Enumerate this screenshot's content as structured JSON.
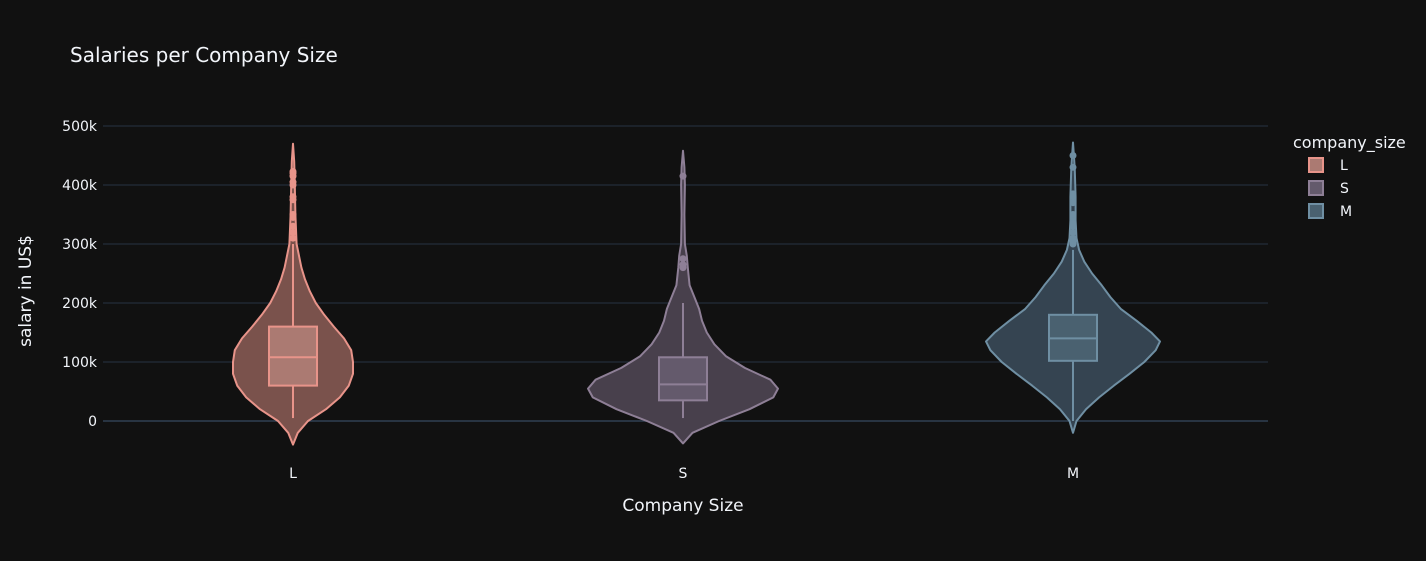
{
  "chart_data": {
    "type": "violin",
    "title": "Salaries per Company Size",
    "xlabel": "Company Size",
    "ylabel": "salary in US$",
    "ylim": [
      -50000,
      500000
    ],
    "yticks": [
      0,
      100000,
      200000,
      300000,
      400000,
      500000
    ],
    "ytick_labels": [
      "0",
      "100k",
      "200k",
      "300k",
      "400k",
      "500k"
    ],
    "grid": true,
    "legend_title": "company_size",
    "legend_position": "top-right",
    "series": [
      {
        "name": "L",
        "color": "#e8948a",
        "fill": "#7a524c",
        "box_fill": "#ab7a72",
        "box": {
          "q1": 60000,
          "median": 108000,
          "q3": 160000,
          "whisker_low": 5000,
          "whisker_high": 300000
        },
        "outliers": [
          310000,
          320000,
          330000,
          345000,
          350000,
          375000,
          380000,
          400000,
          405000,
          415000,
          420000,
          423000
        ],
        "density": [
          [
            -40000,
            0
          ],
          [
            -20000,
            0.08
          ],
          [
            0,
            0.25
          ],
          [
            20000,
            0.55
          ],
          [
            40000,
            0.78
          ],
          [
            60000,
            0.93
          ],
          [
            80000,
            1.0
          ],
          [
            100000,
            1.0
          ],
          [
            120000,
            0.97
          ],
          [
            140000,
            0.85
          ],
          [
            160000,
            0.68
          ],
          [
            180000,
            0.52
          ],
          [
            200000,
            0.38
          ],
          [
            220000,
            0.28
          ],
          [
            240000,
            0.2
          ],
          [
            260000,
            0.14
          ],
          [
            280000,
            0.1
          ],
          [
            300000,
            0.06
          ],
          [
            350000,
            0.04
          ],
          [
            400000,
            0.03
          ],
          [
            440000,
            0.02
          ],
          [
            470000,
            0
          ]
        ]
      },
      {
        "name": "S",
        "color": "#8e7f96",
        "fill": "#48404c",
        "box_fill": "#645a6c",
        "box": {
          "q1": 35000,
          "median": 62000,
          "q3": 108000,
          "whisker_low": 5000,
          "whisker_high": 200000
        },
        "outliers": [
          260000,
          265000,
          275000,
          415000
        ],
        "density": [
          [
            -38000,
            0
          ],
          [
            -20000,
            0.1
          ],
          [
            0,
            0.38
          ],
          [
            20000,
            0.7
          ],
          [
            40000,
            0.95
          ],
          [
            55000,
            1.0
          ],
          [
            70000,
            0.92
          ],
          [
            90000,
            0.65
          ],
          [
            110000,
            0.45
          ],
          [
            130000,
            0.33
          ],
          [
            150000,
            0.25
          ],
          [
            170000,
            0.2
          ],
          [
            190000,
            0.17
          ],
          [
            210000,
            0.12
          ],
          [
            230000,
            0.07
          ],
          [
            260000,
            0.05
          ],
          [
            280000,
            0.04
          ],
          [
            300000,
            0.02
          ],
          [
            350000,
            0.015
          ],
          [
            400000,
            0.02
          ],
          [
            430000,
            0.015
          ],
          [
            458000,
            0
          ]
        ]
      },
      {
        "name": "M",
        "color": "#6f8fa3",
        "fill": "#354451",
        "box_fill": "#4a6170",
        "box": {
          "q1": 102000,
          "median": 140000,
          "q3": 180000,
          "whisker_low": 0,
          "whisker_high": 290000
        },
        "outliers": [
          300000,
          305000,
          310000,
          320000,
          330000,
          335000,
          345000,
          350000,
          370000,
          380000,
          385000,
          430000,
          450000
        ],
        "density": [
          [
            -20000,
            0
          ],
          [
            0,
            0.04
          ],
          [
            20000,
            0.15
          ],
          [
            40000,
            0.3
          ],
          [
            60000,
            0.47
          ],
          [
            80000,
            0.65
          ],
          [
            100000,
            0.82
          ],
          [
            120000,
            0.95
          ],
          [
            135000,
            1.0
          ],
          [
            150000,
            0.9
          ],
          [
            170000,
            0.73
          ],
          [
            190000,
            0.55
          ],
          [
            210000,
            0.43
          ],
          [
            230000,
            0.33
          ],
          [
            250000,
            0.22
          ],
          [
            270000,
            0.13
          ],
          [
            290000,
            0.07
          ],
          [
            310000,
            0.04
          ],
          [
            340000,
            0.03
          ],
          [
            380000,
            0.03
          ],
          [
            430000,
            0.02
          ],
          [
            472000,
            0
          ]
        ]
      }
    ]
  }
}
